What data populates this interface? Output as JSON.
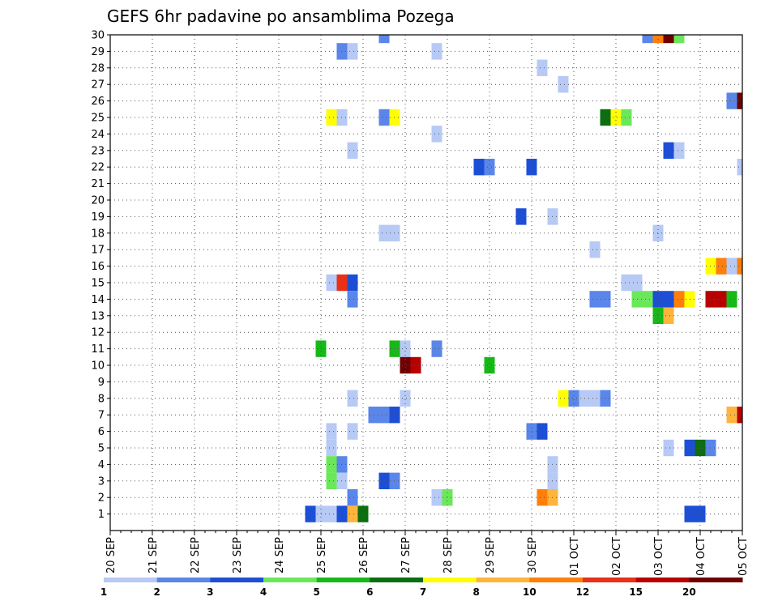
{
  "chart_data": {
    "type": "heatmap",
    "title": "GEFS 6hr padavine po ansamblima Pozega",
    "x_start_date": "2018-09-20",
    "x_period_hours": 6,
    "x_steps": 61,
    "x_tick_labels": [
      "20 SEP",
      "21 SEP",
      "22 SEP",
      "23 SEP",
      "24 SEP",
      "25 SEP",
      "26 SEP",
      "27 SEP",
      "28 SEP",
      "29 SEP",
      "30 SEP",
      "01 OCT",
      "02 OCT",
      "03 OCT",
      "04 OCT",
      "05 OCT"
    ],
    "y_tick_labels": [
      "1",
      "2",
      "3",
      "4",
      "5",
      "6",
      "7",
      "8",
      "9",
      "10",
      "11",
      "12",
      "13",
      "14",
      "15",
      "16",
      "17",
      "18",
      "19",
      "20",
      "21",
      "22",
      "23",
      "24",
      "25",
      "26",
      "27",
      "28",
      "29",
      "30"
    ],
    "ylim": [
      0,
      30
    ],
    "grid": true,
    "legend_position": "bottom",
    "color_bins": [
      {
        "from": 1,
        "to": 2,
        "color": "#b7c9f5"
      },
      {
        "from": 2,
        "to": 3,
        "color": "#5a86ea"
      },
      {
        "from": 3,
        "to": 4,
        "color": "#1d4fd6"
      },
      {
        "from": 4,
        "to": 5,
        "color": "#6ae85a"
      },
      {
        "from": 5,
        "to": 6,
        "color": "#17b817"
      },
      {
        "from": 6,
        "to": 7,
        "color": "#0b6e10"
      },
      {
        "from": 7,
        "to": 8,
        "color": "#ffff00"
      },
      {
        "from": 8,
        "to": 10,
        "color": "#ffb43c"
      },
      {
        "from": 10,
        "to": 12,
        "color": "#ff7f0a"
      },
      {
        "from": 12,
        "to": 15,
        "color": "#e63219"
      },
      {
        "from": 15,
        "to": 20,
        "color": "#b80000"
      },
      {
        "from": 20,
        "to": 99,
        "color": "#6e0000"
      }
    ],
    "legend_labels": [
      "1",
      "2",
      "3",
      "4",
      "5",
      "6",
      "7",
      "8",
      "10",
      "12",
      "15",
      "20"
    ],
    "cells": [
      {
        "member": 30,
        "step": 26,
        "value": 2
      },
      {
        "member": 30,
        "step": 51,
        "value": 2
      },
      {
        "member": 30,
        "step": 52,
        "value": 10
      },
      {
        "member": 30,
        "step": 53,
        "value": 25
      },
      {
        "member": 30,
        "step": 54,
        "value": 4
      },
      {
        "member": 29,
        "step": 22,
        "value": 2
      },
      {
        "member": 29,
        "step": 23,
        "value": 1.5
      },
      {
        "member": 29,
        "step": 31,
        "value": 1.5
      },
      {
        "member": 28,
        "step": 41,
        "value": 1.5
      },
      {
        "member": 27,
        "step": 43,
        "value": 1.5
      },
      {
        "member": 26,
        "step": 59,
        "value": 2
      },
      {
        "member": 26,
        "step": 60,
        "value": 25
      },
      {
        "member": 25,
        "step": 21,
        "value": 7
      },
      {
        "member": 25,
        "step": 22,
        "value": 1.5
      },
      {
        "member": 25,
        "step": 26,
        "value": 2
      },
      {
        "member": 25,
        "step": 27,
        "value": 7
      },
      {
        "member": 25,
        "step": 47,
        "value": 6
      },
      {
        "member": 25,
        "step": 48,
        "value": 7
      },
      {
        "member": 25,
        "step": 49,
        "value": 4
      },
      {
        "member": 24,
        "step": 31,
        "value": 1.5
      },
      {
        "member": 23,
        "step": 23,
        "value": 1.5
      },
      {
        "member": 23,
        "step": 53,
        "value": 3
      },
      {
        "member": 23,
        "step": 54,
        "value": 1.5
      },
      {
        "member": 22,
        "step": 35,
        "value": 3
      },
      {
        "member": 22,
        "step": 36,
        "value": 2
      },
      {
        "member": 22,
        "step": 40,
        "value": 3
      },
      {
        "member": 22,
        "step": 60,
        "value": 1.5
      },
      {
        "member": 19,
        "step": 39,
        "value": 3
      },
      {
        "member": 19,
        "step": 42,
        "value": 1.5
      },
      {
        "member": 18,
        "step": 26,
        "value": 1.5
      },
      {
        "member": 18,
        "step": 27,
        "value": 1.5
      },
      {
        "member": 18,
        "step": 52,
        "value": 1.5
      },
      {
        "member": 17,
        "step": 46,
        "value": 1.5
      },
      {
        "member": 16,
        "step": 57,
        "value": 7
      },
      {
        "member": 16,
        "step": 58,
        "value": 10
      },
      {
        "member": 16,
        "step": 59,
        "value": 1.5
      },
      {
        "member": 16,
        "step": 60,
        "value": 10
      },
      {
        "member": 15,
        "step": 21,
        "value": 1.5
      },
      {
        "member": 15,
        "step": 22,
        "value": 13
      },
      {
        "member": 15,
        "step": 23,
        "value": 3
      },
      {
        "member": 15,
        "step": 49,
        "value": 1.5
      },
      {
        "member": 15,
        "step": 50,
        "value": 1.5
      },
      {
        "member": 14,
        "step": 23,
        "value": 2
      },
      {
        "member": 14,
        "step": 46,
        "value": 2
      },
      {
        "member": 14,
        "step": 47,
        "value": 2
      },
      {
        "member": 14,
        "step": 50,
        "value": 4
      },
      {
        "member": 14,
        "step": 51,
        "value": 4
      },
      {
        "member": 14,
        "step": 52,
        "value": 3
      },
      {
        "member": 14,
        "step": 53,
        "value": 3
      },
      {
        "member": 14,
        "step": 54,
        "value": 10
      },
      {
        "member": 14,
        "step": 55,
        "value": 7
      },
      {
        "member": 14,
        "step": 57,
        "value": 17
      },
      {
        "member": 14,
        "step": 58,
        "value": 17
      },
      {
        "member": 14,
        "step": 59,
        "value": 5
      },
      {
        "member": 13,
        "step": 52,
        "value": 5
      },
      {
        "member": 13,
        "step": 53,
        "value": 9
      },
      {
        "member": 11,
        "step": 20,
        "value": 5
      },
      {
        "member": 11,
        "step": 27,
        "value": 5
      },
      {
        "member": 11,
        "step": 28,
        "value": 1.5
      },
      {
        "member": 11,
        "step": 31,
        "value": 2
      },
      {
        "member": 10,
        "step": 28,
        "value": 25
      },
      {
        "member": 10,
        "step": 29,
        "value": 17
      },
      {
        "member": 10,
        "step": 36,
        "value": 5
      },
      {
        "member": 8,
        "step": 23,
        "value": 1.5
      },
      {
        "member": 8,
        "step": 28,
        "value": 1.5
      },
      {
        "member": 8,
        "step": 43,
        "value": 7
      },
      {
        "member": 8,
        "step": 44,
        "value": 2
      },
      {
        "member": 8,
        "step": 45,
        "value": 1.5
      },
      {
        "member": 8,
        "step": 46,
        "value": 1.5
      },
      {
        "member": 8,
        "step": 47,
        "value": 2
      },
      {
        "member": 7,
        "step": 25,
        "value": 2
      },
      {
        "member": 7,
        "step": 26,
        "value": 2
      },
      {
        "member": 7,
        "step": 27,
        "value": 3
      },
      {
        "member": 7,
        "step": 59,
        "value": 9
      },
      {
        "member": 7,
        "step": 60,
        "value": 17
      },
      {
        "member": 6,
        "step": 21,
        "value": 1.5
      },
      {
        "member": 6,
        "step": 23,
        "value": 1.5
      },
      {
        "member": 6,
        "step": 40,
        "value": 2
      },
      {
        "member": 6,
        "step": 41,
        "value": 3
      },
      {
        "member": 5,
        "step": 21,
        "value": 1.5
      },
      {
        "member": 5,
        "step": 53,
        "value": 1.5
      },
      {
        "member": 5,
        "step": 55,
        "value": 3
      },
      {
        "member": 5,
        "step": 56,
        "value": 6
      },
      {
        "member": 5,
        "step": 57,
        "value": 2
      },
      {
        "member": 4,
        "step": 21,
        "value": 4
      },
      {
        "member": 4,
        "step": 22,
        "value": 2
      },
      {
        "member": 4,
        "step": 42,
        "value": 1.5
      },
      {
        "member": 3,
        "step": 21,
        "value": 4
      },
      {
        "member": 3,
        "step": 22,
        "value": 1.5
      },
      {
        "member": 3,
        "step": 26,
        "value": 3
      },
      {
        "member": 3,
        "step": 27,
        "value": 2
      },
      {
        "member": 3,
        "step": 42,
        "value": 1.5
      },
      {
        "member": 2,
        "step": 23,
        "value": 2
      },
      {
        "member": 2,
        "step": 31,
        "value": 1.5
      },
      {
        "member": 2,
        "step": 32,
        "value": 4
      },
      {
        "member": 2,
        "step": 41,
        "value": 10
      },
      {
        "member": 2,
        "step": 42,
        "value": 9
      },
      {
        "member": 1,
        "step": 19,
        "value": 3
      },
      {
        "member": 1,
        "step": 20,
        "value": 1.5
      },
      {
        "member": 1,
        "step": 21,
        "value": 1.5
      },
      {
        "member": 1,
        "step": 22,
        "value": 3
      },
      {
        "member": 1,
        "step": 23,
        "value": 9
      },
      {
        "member": 1,
        "step": 24,
        "value": 6
      },
      {
        "member": 1,
        "step": 55,
        "value": 3
      },
      {
        "member": 1,
        "step": 56,
        "value": 3
      }
    ]
  }
}
